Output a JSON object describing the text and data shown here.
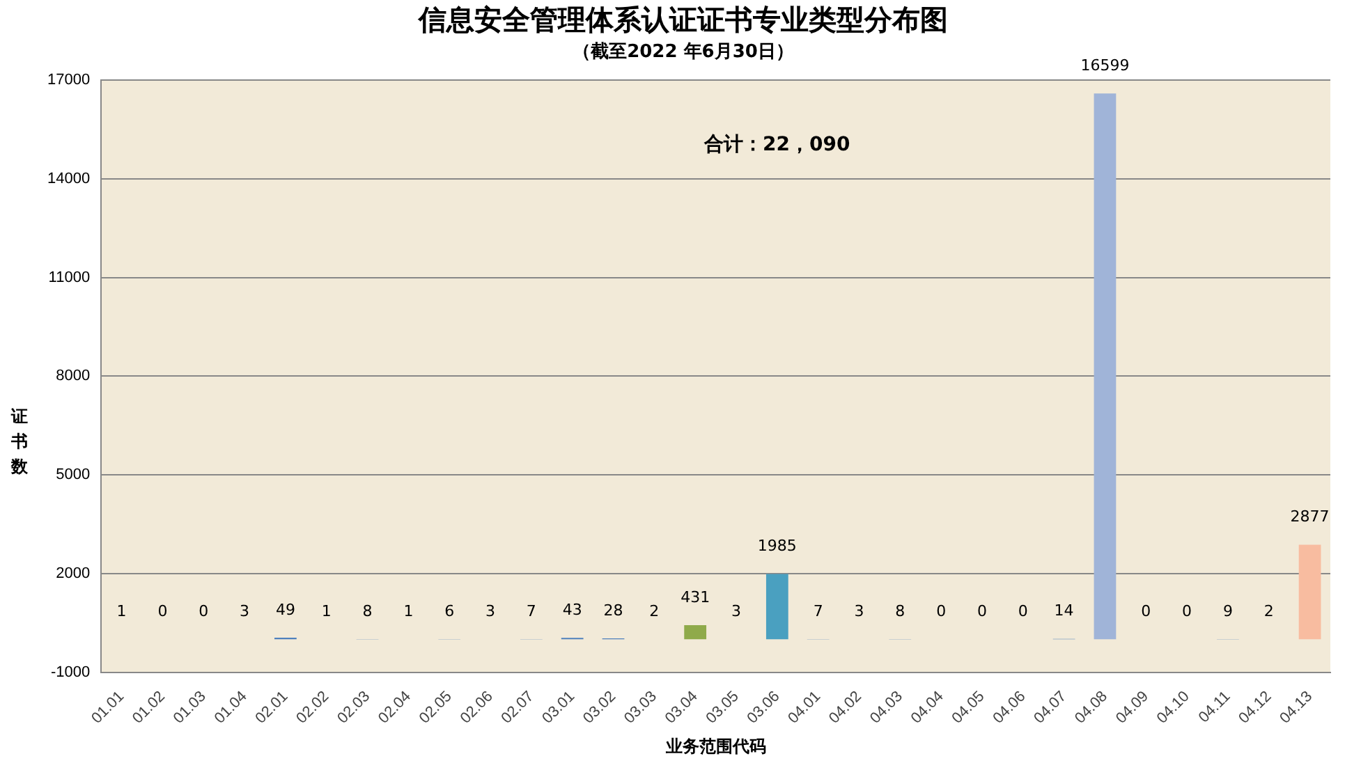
{
  "chart_data": {
    "type": "bar",
    "title": "信息安全管理体系认证证书专业类型分布图",
    "subtitle": "（截至2022 年6月30日）",
    "xlabel": "业务范围代码",
    "ylabel": "证书数",
    "categories": [
      "01.01",
      "01.02",
      "01.03",
      "01.04",
      "02.01",
      "02.02",
      "02.03",
      "02.04",
      "02.05",
      "02.06",
      "02.07",
      "03.01",
      "03.02",
      "03.03",
      "03.04",
      "03.05",
      "03.06",
      "04.01",
      "04.02",
      "04.03",
      "04.04",
      "04.05",
      "04.06",
      "04.07",
      "04.08",
      "04.09",
      "04.10",
      "04.11",
      "04.12",
      "04.13"
    ],
    "values": [
      1,
      0,
      0,
      3,
      49,
      1,
      8,
      1,
      6,
      3,
      7,
      43,
      28,
      2,
      431,
      3,
      1985,
      7,
      3,
      8,
      0,
      0,
      0,
      14,
      16599,
      0,
      0,
      9,
      2,
      2877
    ],
    "colors": [
      "#4f81bd",
      "#4f81bd",
      "#4f81bd",
      "#4f81bd",
      "#4f81bd",
      "#4f81bd",
      "#4f81bd",
      "#4f81bd",
      "#4f81bd",
      "#4f81bd",
      "#4f81bd",
      "#4f81bd",
      "#4f81bd",
      "#4f81bd",
      "#8faa4a",
      "#4f81bd",
      "#4aa0c0",
      "#4f81bd",
      "#4f81bd",
      "#4f81bd",
      "#4f81bd",
      "#4f81bd",
      "#4f81bd",
      "#4f81bd",
      "#a0b4d8",
      "#4f81bd",
      "#4f81bd",
      "#4f81bd",
      "#4f81bd",
      "#f8bca0"
    ],
    "ylim": [
      -1000,
      17000
    ],
    "yticks": [
      -1000,
      2000,
      5000,
      8000,
      11000,
      14000,
      17000
    ],
    "grid": "y",
    "legend": false,
    "data_labels": true,
    "annotations": [
      "合计：22，090"
    ]
  }
}
